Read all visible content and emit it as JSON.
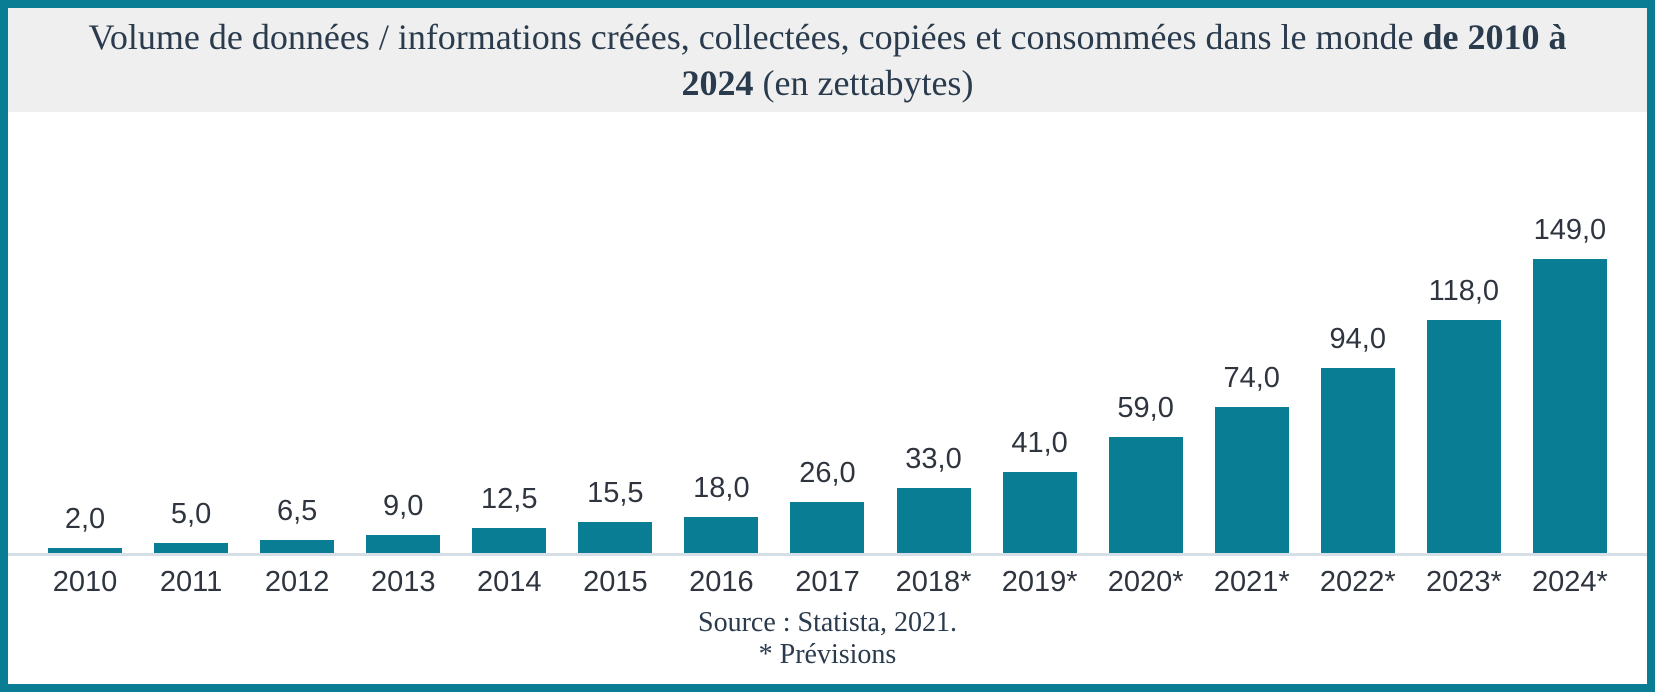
{
  "frame": {
    "border_color": "#087D93",
    "title_band_color": "#EFEFEF"
  },
  "title": {
    "part1": "Volume de données / informations créées, collectées, copiées et consommées dans le monde ",
    "bold": "de 2010 à 2024",
    "part3": " (en zettabytes)"
  },
  "chart_data": {
    "type": "bar",
    "title": "Volume de données / informations créées, collectées, copiées et consommées dans le monde de 2010 à 2024 (en zettabytes)",
    "unit": "zettabytes",
    "categories": [
      "2010",
      "2011",
      "2012",
      "2013",
      "2014",
      "2015",
      "2016",
      "2017",
      "2018*",
      "2019*",
      "2020*",
      "2021*",
      "2022*",
      "2023*",
      "2024*"
    ],
    "values": [
      2,
      5,
      6.5,
      9,
      12.5,
      15.5,
      18,
      26,
      33,
      41,
      59,
      74,
      94,
      118,
      149
    ],
    "value_labels": [
      "2,0",
      "5,0",
      "6,5",
      "9,0",
      "12,5",
      "15,5",
      "18,0",
      "26,0",
      "33,0",
      "41,0",
      "59,0",
      "74,0",
      "94,0",
      "118,0",
      "149,0"
    ],
    "bar_color": "#087D93",
    "ylim": [
      0,
      149
    ],
    "grid": false,
    "legend": "none",
    "data_labels_position": "above-bars"
  },
  "footer": {
    "source": "Source : Statista, 2021.",
    "note": "* Prévisions"
  }
}
